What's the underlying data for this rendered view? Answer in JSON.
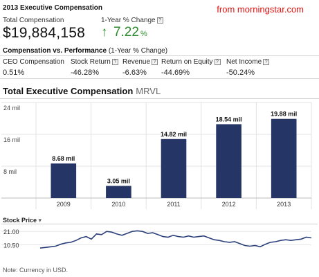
{
  "header": {
    "title": "2013 Executive Compensation",
    "source": "from morningstar.com"
  },
  "summary": {
    "total_label": "Total Compensation",
    "total_value": "$19,884,158",
    "change_label": "1-Year % Change",
    "change_arrow": "↑",
    "change_value": "7.22",
    "change_unit": "%"
  },
  "performance": {
    "title": "Compensation vs. Performance",
    "subtitle": "(1-Year % Change)",
    "columns": [
      {
        "label": "CEO Compensation",
        "value": "0.51%",
        "help": false
      },
      {
        "label": "Stock Return",
        "value": "-46.28%",
        "help": true
      },
      {
        "label": "Revenue",
        "value": "-6.63%",
        "help": true
      },
      {
        "label": "Return on Equity",
        "value": "-44.69%",
        "help": true
      },
      {
        "label": "Net Income",
        "value": "-50.24%",
        "help": true
      }
    ]
  },
  "help_glyph": "?",
  "chart_title": "Total Executive Compensation",
  "chart_ticker": "MRVL",
  "chart_data": {
    "type": "bar",
    "title": "Total Executive Compensation",
    "categories": [
      "2009",
      "2010",
      "2011",
      "2012",
      "2013"
    ],
    "values": [
      8.68,
      3.05,
      14.82,
      18.54,
      19.88
    ],
    "data_labels": [
      "8.68 mil",
      "3.05 mil",
      "14.82 mil",
      "18.54 mil",
      "19.88 mil"
    ],
    "yticks": [
      "24 mil",
      "16 mil",
      "8 mil"
    ],
    "ytick_values": [
      24,
      16,
      8
    ],
    "ylim": [
      0,
      24
    ],
    "bar_color": "#253566",
    "grid": true
  },
  "stock": {
    "label": "Stock Price",
    "menu_glyph": "▾",
    "yticks": [
      "21.00",
      "10.50"
    ],
    "ytick_values": [
      21,
      10.5
    ],
    "ylim": [
      0,
      26
    ],
    "line_color": "#2b3f7a",
    "series": [
      8,
      8.5,
      9,
      9.5,
      11,
      12,
      12.5,
      14,
      16,
      17,
      15,
      19,
      18.5,
      21,
      20.5,
      19,
      18,
      19.5,
      21,
      21.5,
      21,
      19.5,
      20,
      18.5,
      17,
      16.5,
      18,
      17,
      16.5,
      17.5,
      16.5,
      17,
      17.5,
      16,
      14.5,
      14,
      13,
      12.5,
      13,
      11.5,
      10,
      9.5,
      10,
      9,
      11,
      12.5,
      13,
      14,
      14.5,
      14,
      14.5,
      15,
      16.5,
      16
    ]
  },
  "note": "Note: Currency in USD."
}
